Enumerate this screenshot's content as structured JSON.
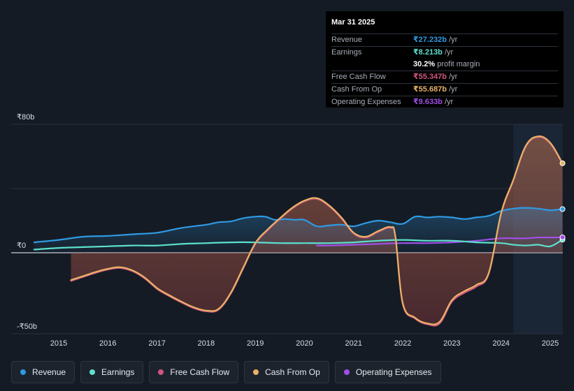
{
  "tooltip": {
    "date": "Mar 31 2025",
    "rows": [
      {
        "label": "Revenue",
        "value": "₹27.232b",
        "unit": " /yr"
      },
      {
        "label": "Earnings",
        "value": "₹8.213b",
        "unit": " /yr"
      },
      {
        "label": "",
        "value": "30.2%",
        "unit": " profit margin"
      },
      {
        "label": "Free Cash Flow",
        "value": "₹55.347b",
        "unit": " /yr"
      },
      {
        "label": "Cash From Op",
        "value": "₹55.687b",
        "unit": " /yr"
      },
      {
        "label": "Operating Expenses",
        "value": "₹9.633b",
        "unit": " /yr"
      }
    ]
  },
  "legend": [
    {
      "label": "Revenue",
      "color": "#2f9ae3"
    },
    {
      "label": "Earnings",
      "color": "#5ce0cc"
    },
    {
      "label": "Free Cash Flow",
      "color": "#d0567f"
    },
    {
      "label": "Cash From Op",
      "color": "#e8b266"
    },
    {
      "label": "Operating Expenses",
      "color": "#a14fe8"
    }
  ],
  "chart_data": {
    "type": "area",
    "title": "",
    "xlabel": "",
    "ylabel": "",
    "ylim": [
      -50,
      80
    ],
    "xlim": [
      2014.5,
      2025.25
    ],
    "grid": true,
    "y_tick_labels": [
      {
        "value": 80,
        "label": "₹80b"
      },
      {
        "value": 0,
        "label": "₹0"
      },
      {
        "value": -50,
        "label": "-₹50b"
      }
    ],
    "x_ticks": [
      2015,
      2016,
      2017,
      2018,
      2019,
      2020,
      2021,
      2022,
      2023,
      2024,
      2025
    ],
    "x_tick_labels": [
      "2015",
      "2016",
      "2017",
      "2018",
      "2019",
      "2020",
      "2021",
      "2022",
      "2023",
      "2024",
      "2025"
    ],
    "highlight_from": 2024.25,
    "series": [
      {
        "name": "Revenue",
        "color": "#2f9ae3",
        "x": [
          2014.5,
          2015.0,
          2015.5,
          2016.0,
          2016.5,
          2017.0,
          2017.5,
          2018.0,
          2018.25,
          2018.5,
          2018.75,
          2019.0,
          2019.2,
          2019.4,
          2019.6,
          2019.8,
          2020.0,
          2020.25,
          2020.5,
          2020.75,
          2021.0,
          2021.25,
          2021.5,
          2021.75,
          2022.0,
          2022.25,
          2022.5,
          2022.75,
          2023.0,
          2023.25,
          2023.5,
          2023.75,
          2024.0,
          2024.25,
          2024.5,
          2024.75,
          2025.0,
          2025.25
        ],
        "y": [
          6.5,
          8.0,
          10.0,
          10.5,
          11.5,
          12.5,
          15.5,
          17.5,
          19.0,
          19.5,
          21.5,
          22.5,
          22.5,
          20.5,
          21.0,
          20.5,
          20.5,
          16.5,
          17.0,
          17.5,
          16.5,
          18.5,
          20.0,
          19.0,
          18.0,
          22.5,
          22.0,
          22.5,
          22.0,
          21.0,
          22.0,
          23.0,
          26.0,
          27.5,
          28.0,
          27.5,
          26.5,
          27.2
        ],
        "end_marker": true
      },
      {
        "name": "Earnings",
        "color": "#5ce0cc",
        "x": [
          2014.5,
          2015.0,
          2015.5,
          2016.0,
          2016.5,
          2017.0,
          2017.5,
          2018.0,
          2018.5,
          2019.0,
          2019.5,
          2020.0,
          2020.5,
          2021.0,
          2021.5,
          2022.0,
          2022.5,
          2023.0,
          2023.5,
          2024.0,
          2024.25,
          2024.5,
          2024.75,
          2025.0,
          2025.25
        ],
        "y": [
          2.0,
          3.0,
          3.5,
          4.0,
          4.5,
          4.5,
          5.5,
          6.0,
          6.5,
          6.5,
          6.0,
          6.0,
          6.0,
          6.5,
          7.5,
          8.0,
          7.5,
          7.5,
          6.5,
          6.0,
          5.0,
          4.5,
          5.0,
          4.0,
          8.2
        ],
        "end_marker": true
      },
      {
        "name": "Free Cash Flow",
        "color": "#d0567f",
        "x": [
          2015.25,
          2015.5,
          2015.75,
          2016.0,
          2016.25,
          2016.5,
          2016.75,
          2017.0,
          2017.25,
          2017.5,
          2017.75,
          2018.0,
          2018.25,
          2018.5,
          2018.75,
          2019.0,
          2019.25,
          2019.5,
          2019.75,
          2020.0,
          2020.25,
          2020.5,
          2020.75,
          2021.0,
          2021.25,
          2021.5,
          2021.75,
          2021.85,
          2022.0,
          2022.25,
          2022.5,
          2022.75,
          2023.0,
          2023.25,
          2023.5,
          2023.75,
          2024.0,
          2024.25,
          2024.5,
          2024.75,
          2025.0,
          2025.25
        ],
        "y": [
          -17.5,
          -15.0,
          -12.5,
          -10.5,
          -9.5,
          -11.5,
          -16.0,
          -22.5,
          -27.0,
          -31.0,
          -34.5,
          -36.5,
          -35.5,
          -25.5,
          -10.0,
          5.5,
          14.0,
          21.0,
          27.5,
          32.0,
          33.5,
          29.0,
          21.5,
          12.0,
          9.5,
          13.0,
          15.5,
          9.5,
          -32.0,
          -41.0,
          -44.5,
          -44.0,
          -30.5,
          -25.0,
          -21.0,
          -13.0,
          24.0,
          45.0,
          66.0,
          72.0,
          68.0,
          55.3
        ],
        "end_marker": false
      },
      {
        "name": "Cash From Op",
        "color": "#e8b266",
        "x": [
          2015.25,
          2015.5,
          2015.75,
          2016.0,
          2016.25,
          2016.5,
          2016.75,
          2017.0,
          2017.25,
          2017.5,
          2017.75,
          2018.0,
          2018.25,
          2018.5,
          2018.75,
          2019.0,
          2019.25,
          2019.5,
          2019.75,
          2020.0,
          2020.25,
          2020.5,
          2020.75,
          2021.0,
          2021.25,
          2021.5,
          2021.75,
          2021.85,
          2022.0,
          2022.25,
          2022.5,
          2022.75,
          2023.0,
          2023.25,
          2023.5,
          2023.75,
          2024.0,
          2024.25,
          2024.5,
          2024.75,
          2025.0,
          2025.25
        ],
        "y": [
          -17.0,
          -14.5,
          -12.0,
          -10.0,
          -9.0,
          -11.0,
          -15.5,
          -22.0,
          -26.5,
          -30.5,
          -34.0,
          -36.0,
          -35.0,
          -25.0,
          -9.5,
          6.0,
          14.5,
          21.5,
          28.0,
          32.5,
          34.0,
          29.5,
          22.0,
          12.5,
          10.0,
          13.5,
          16.0,
          10.0,
          -31.5,
          -40.5,
          -44.0,
          -43.0,
          -29.5,
          -24.0,
          -20.0,
          -12.5,
          24.5,
          45.5,
          66.5,
          72.5,
          68.5,
          55.7
        ],
        "end_marker": true
      },
      {
        "name": "Operating Expenses",
        "color": "#a14fe8",
        "x": [
          2020.25,
          2020.5,
          2021.0,
          2021.5,
          2022.0,
          2022.5,
          2023.0,
          2023.5,
          2024.0,
          2024.25,
          2024.5,
          2024.75,
          2025.0,
          2025.25
        ],
        "y": [
          4.5,
          4.5,
          5.0,
          5.5,
          6.0,
          6.0,
          6.5,
          7.5,
          9.0,
          9.0,
          9.0,
          9.5,
          9.5,
          9.6
        ],
        "end_marker": true
      }
    ]
  }
}
